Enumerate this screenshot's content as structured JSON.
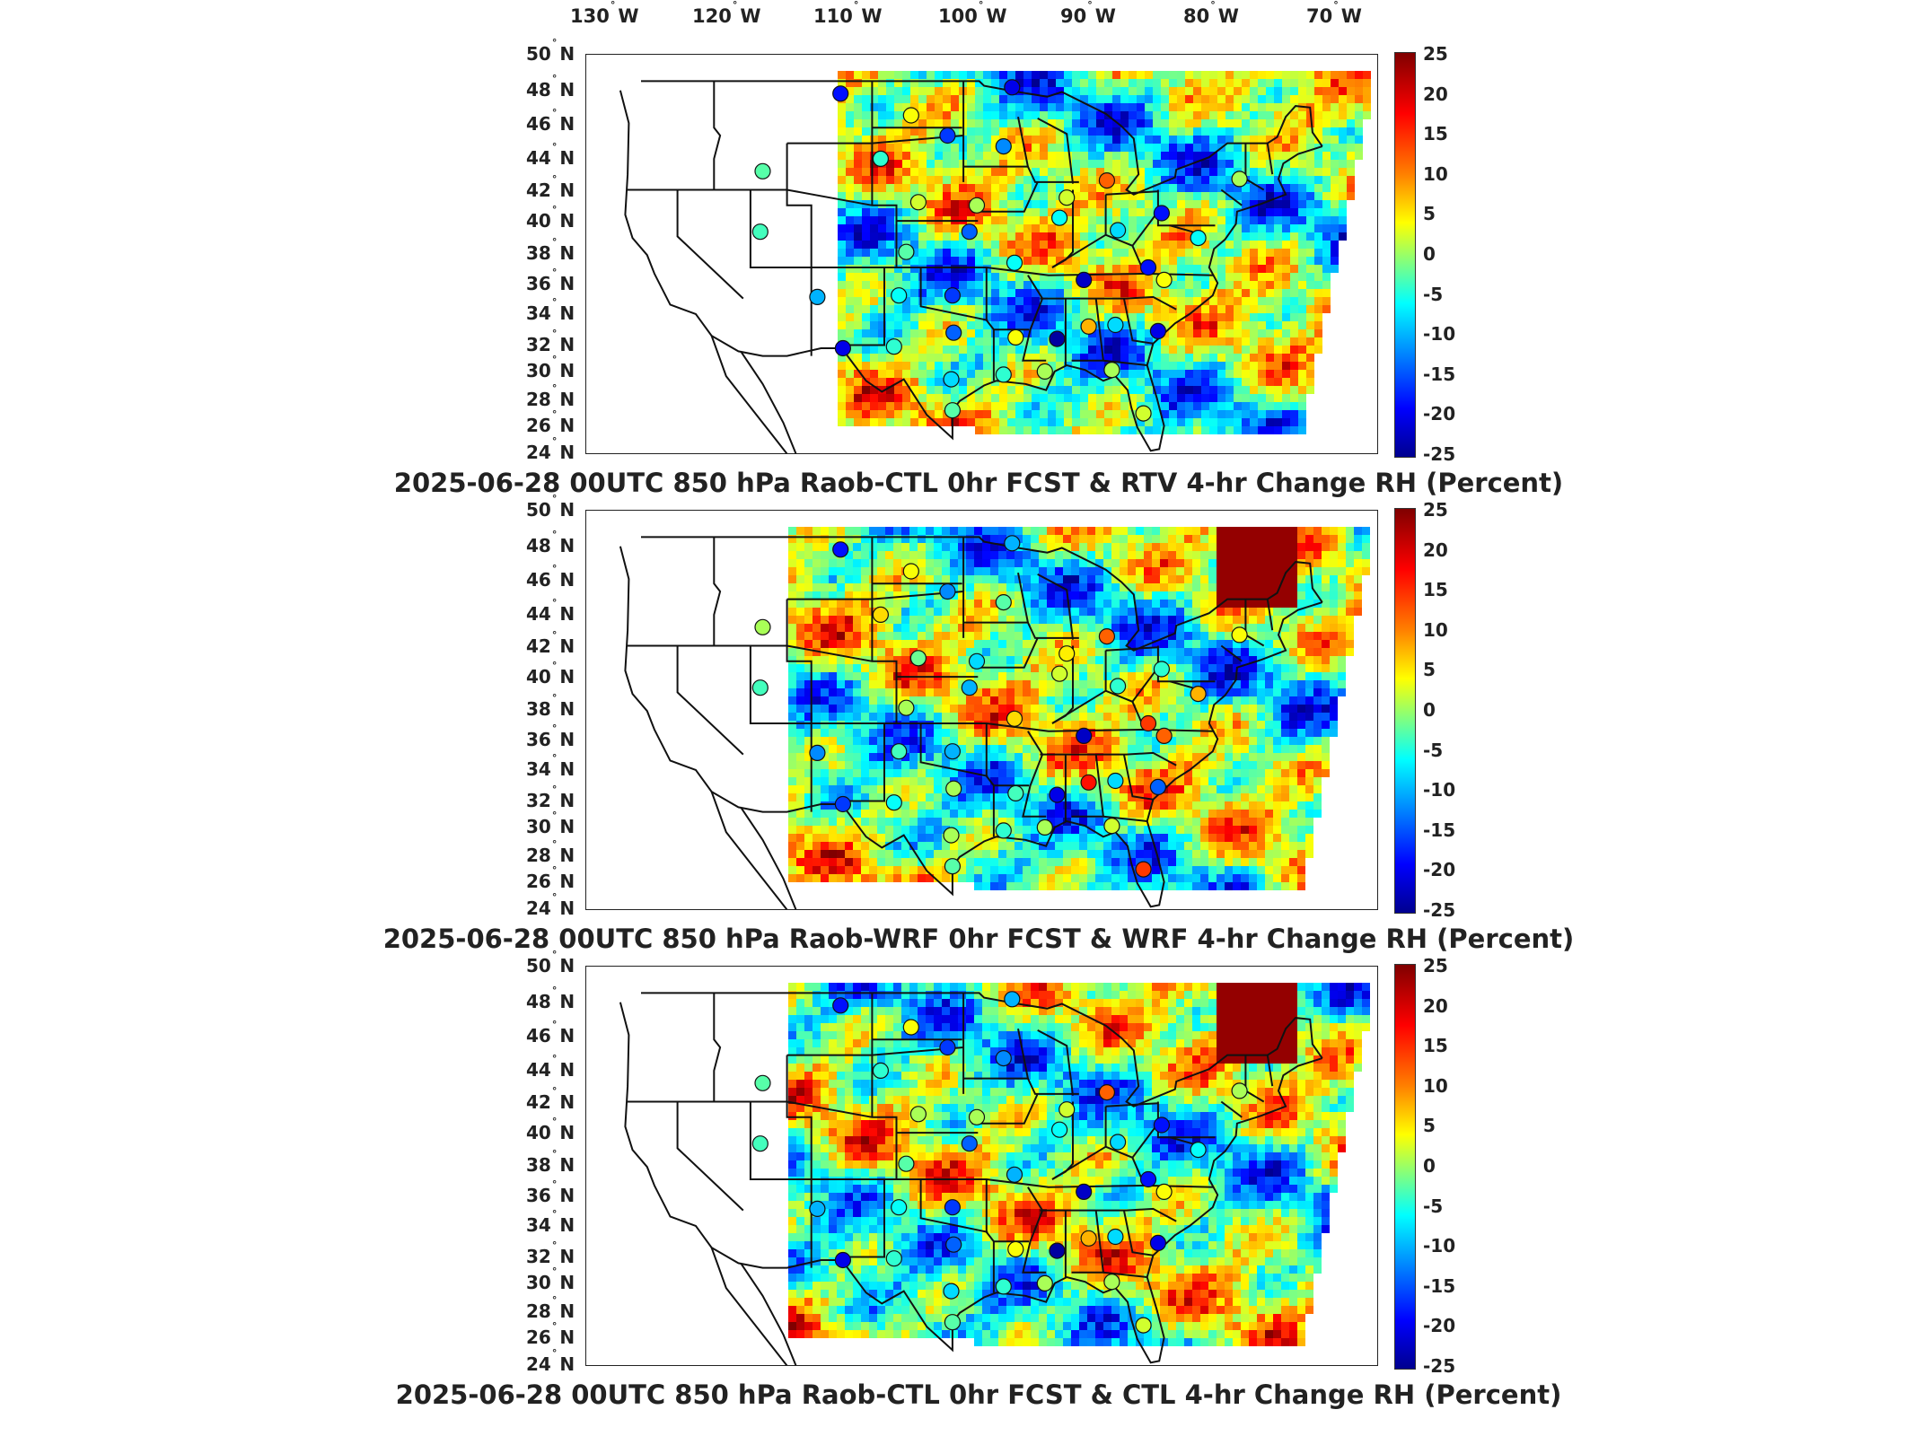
{
  "lon_labels": [
    {
      "deg": "130",
      "hem": "W"
    },
    {
      "deg": "120",
      "hem": "W"
    },
    {
      "deg": "110",
      "hem": "W"
    },
    {
      "deg": "100",
      "hem": "W"
    },
    {
      "deg": "90",
      "hem": "W"
    },
    {
      "deg": "80",
      "hem": "W"
    },
    {
      "deg": "70",
      "hem": "W"
    }
  ],
  "lat_labels": [
    {
      "deg": "50",
      "hem": "N"
    },
    {
      "deg": "48",
      "hem": "N"
    },
    {
      "deg": "46",
      "hem": "N"
    },
    {
      "deg": "44",
      "hem": "N"
    },
    {
      "deg": "42",
      "hem": "N"
    },
    {
      "deg": "40",
      "hem": "N"
    },
    {
      "deg": "38",
      "hem": "N"
    },
    {
      "deg": "36",
      "hem": "N"
    },
    {
      "deg": "34",
      "hem": "N"
    },
    {
      "deg": "32",
      "hem": "N"
    },
    {
      "deg": "30",
      "hem": "N"
    },
    {
      "deg": "28",
      "hem": "N"
    },
    {
      "deg": "26",
      "hem": "N"
    },
    {
      "deg": "24",
      "hem": "N"
    }
  ],
  "colorbar": {
    "ticks": [
      "25",
      "20",
      "15",
      "10",
      "5",
      "0",
      "-5",
      "-10",
      "-15",
      "-20",
      "-25"
    ],
    "min": -25,
    "max": 25,
    "colors": [
      "#00008f",
      "#0000ff",
      "#0080ff",
      "#00ffff",
      "#80ff80",
      "#ffff00",
      "#ff8000",
      "#ff0000",
      "#800000"
    ]
  },
  "panels": [
    {
      "title": "2025-06-28 00UTC 850 hPa Raob-CTL 0hr FCST & RTV 4-hr Change RH (Percent)"
    },
    {
      "title": "2025-06-28 00UTC 850 hPa Raob-WRF 0hr FCST & WRF 4-hr Change RH (Percent)"
    },
    {
      "title": "2025-06-28 00UTC 850 hPa Raob-CTL 0hr FCST & CTL 4-hr Change RH (Percent)"
    }
  ],
  "stations": [
    {
      "lon": -106.6,
      "lat": 48.2,
      "v": [
        -18,
        -18,
        -18
      ]
    },
    {
      "lon": -100.8,
      "lat": 46.8,
      "v": [
        6,
        6,
        6
      ]
    },
    {
      "lon": -97.8,
      "lat": 45.5,
      "v": [
        -16,
        -12,
        -16
      ]
    },
    {
      "lon": -92.5,
      "lat": 48.6,
      "v": [
        -20,
        -10,
        -10
      ]
    },
    {
      "lon": -93.2,
      "lat": 44.8,
      "v": [
        -12,
        -2,
        -12
      ]
    },
    {
      "lon": -113.0,
      "lat": 43.2,
      "v": [
        -2,
        2,
        -2
      ]
    },
    {
      "lon": -103.3,
      "lat": 44.0,
      "v": [
        -4,
        8,
        -4
      ]
    },
    {
      "lon": -100.2,
      "lat": 41.2,
      "v": [
        4,
        -1,
        2
      ]
    },
    {
      "lon": -95.4,
      "lat": 41.0,
      "v": [
        2,
        -8,
        2
      ]
    },
    {
      "lon": -88.0,
      "lat": 41.5,
      "v": [
        4,
        7,
        4
      ]
    },
    {
      "lon": -88.6,
      "lat": 40.2,
      "v": [
        -6,
        4,
        -6
      ]
    },
    {
      "lon": -84.7,
      "lat": 42.6,
      "v": [
        14,
        14,
        14
      ]
    },
    {
      "lon": -80.2,
      "lat": 40.5,
      "v": [
        -18,
        -4,
        -18
      ]
    },
    {
      "lon": -73.8,
      "lat": 42.7,
      "v": [
        2,
        6,
        2
      ]
    },
    {
      "lon": -83.8,
      "lat": 39.4,
      "v": [
        -8,
        -4,
        -8
      ]
    },
    {
      "lon": -96.0,
      "lat": 39.3,
      "v": [
        -14,
        -10,
        -14
      ]
    },
    {
      "lon": -101.2,
      "lat": 38.0,
      "v": [
        -2,
        2,
        -2
      ]
    },
    {
      "lon": -113.2,
      "lat": 39.3,
      "v": [
        -3,
        -3,
        -3
      ]
    },
    {
      "lon": -92.3,
      "lat": 37.3,
      "v": [
        -6,
        8,
        -10
      ]
    },
    {
      "lon": -86.6,
      "lat": 36.2,
      "v": [
        -22,
        -22,
        -22
      ]
    },
    {
      "lon": -81.3,
      "lat": 37.0,
      "v": [
        -18,
        16,
        -18
      ]
    },
    {
      "lon": -80.0,
      "lat": 36.2,
      "v": [
        6,
        14,
        6
      ]
    },
    {
      "lon": -108.5,
      "lat": 35.1,
      "v": [
        -10,
        -12,
        -10
      ]
    },
    {
      "lon": -101.8,
      "lat": 35.2,
      "v": [
        -6,
        -3,
        -6
      ]
    },
    {
      "lon": -97.4,
      "lat": 35.2,
      "v": [
        -16,
        -10,
        -16
      ]
    },
    {
      "lon": -97.3,
      "lat": 32.8,
      "v": [
        -14,
        2,
        -14
      ]
    },
    {
      "lon": -92.2,
      "lat": 32.5,
      "v": [
        6,
        -3,
        6
      ]
    },
    {
      "lon": -88.8,
      "lat": 32.4,
      "v": [
        -24,
        -20,
        -24
      ]
    },
    {
      "lon": -86.2,
      "lat": 33.2,
      "v": [
        10,
        18,
        10
      ]
    },
    {
      "lon": -84.0,
      "lat": 33.3,
      "v": [
        -8,
        -8,
        -8
      ]
    },
    {
      "lon": -80.5,
      "lat": 32.9,
      "v": [
        -20,
        -14,
        -20
      ]
    },
    {
      "lon": -106.4,
      "lat": 31.8,
      "v": [
        -20,
        -16,
        -20
      ]
    },
    {
      "lon": -102.2,
      "lat": 31.9,
      "v": [
        -4,
        -6,
        -4
      ]
    },
    {
      "lon": -97.5,
      "lat": 29.8,
      "v": [
        -8,
        2,
        -8
      ]
    },
    {
      "lon": -93.2,
      "lat": 30.1,
      "v": [
        -4,
        -4,
        -4
      ]
    },
    {
      "lon": -89.8,
      "lat": 30.3,
      "v": [
        2,
        2,
        2
      ]
    },
    {
      "lon": -84.3,
      "lat": 30.4,
      "v": [
        2,
        4,
        2
      ]
    },
    {
      "lon": -97.4,
      "lat": 27.8,
      "v": [
        -2,
        -2,
        -2
      ]
    },
    {
      "lon": -81.7,
      "lat": 27.6,
      "v": [
        4,
        16,
        4
      ]
    },
    {
      "lon": -77.2,
      "lat": 38.9,
      "v": [
        -6,
        10,
        -6
      ]
    }
  ]
}
